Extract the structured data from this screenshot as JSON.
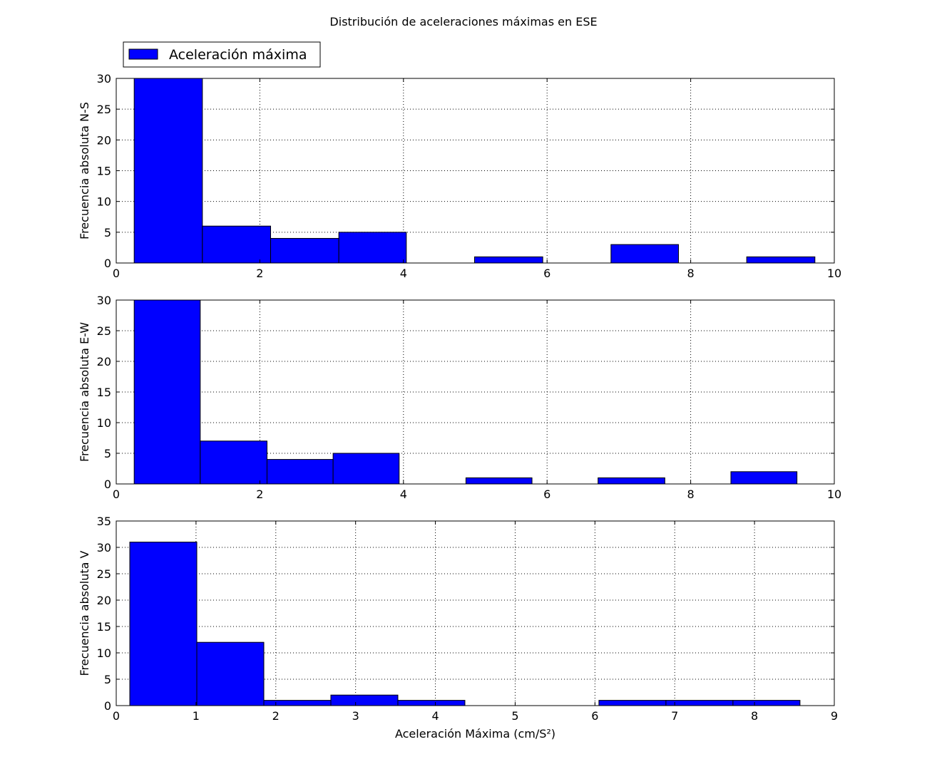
{
  "title": "Distribución de aceleraciones máximas en ESE",
  "legend": {
    "label": "Aceleración máxima",
    "color": "#0000ff",
    "placement": "top-left"
  },
  "colors": {
    "bar_fill": "#0000ff",
    "bar_edge": "#000000",
    "background": "#ffffff"
  },
  "chart_data": [
    {
      "type": "bar",
      "title": "",
      "xlabel": "",
      "ylabel": "Frecuencia absoluta N-S",
      "xlim": [
        0,
        10
      ],
      "ylim": [
        0,
        30
      ],
      "xticks": [
        0,
        2,
        4,
        6,
        8,
        10
      ],
      "yticks": [
        0,
        5,
        10,
        15,
        20,
        25,
        30
      ],
      "grid": true,
      "bins": [
        {
          "start": 0.25,
          "end": 1.2,
          "count": 30
        },
        {
          "start": 1.2,
          "end": 2.15,
          "count": 6
        },
        {
          "start": 2.15,
          "end": 3.1,
          "count": 4
        },
        {
          "start": 3.1,
          "end": 4.04,
          "count": 5
        },
        {
          "start": 4.04,
          "end": 4.99,
          "count": 0
        },
        {
          "start": 4.99,
          "end": 5.94,
          "count": 1
        },
        {
          "start": 5.94,
          "end": 6.89,
          "count": 0
        },
        {
          "start": 6.89,
          "end": 7.83,
          "count": 3
        },
        {
          "start": 7.83,
          "end": 8.78,
          "count": 0
        },
        {
          "start": 8.78,
          "end": 9.73,
          "count": 1
        }
      ]
    },
    {
      "type": "bar",
      "title": "",
      "xlabel": "",
      "ylabel": "Frecuencia absoluta E-W",
      "xlim": [
        0,
        10
      ],
      "ylim": [
        0,
        30
      ],
      "xticks": [
        0,
        2,
        4,
        6,
        8,
        10
      ],
      "yticks": [
        0,
        5,
        10,
        15,
        20,
        25,
        30
      ],
      "grid": true,
      "bins": [
        {
          "start": 0.25,
          "end": 1.17,
          "count": 30
        },
        {
          "start": 1.17,
          "end": 2.1,
          "count": 7
        },
        {
          "start": 2.1,
          "end": 3.02,
          "count": 4
        },
        {
          "start": 3.02,
          "end": 3.94,
          "count": 5
        },
        {
          "start": 3.94,
          "end": 4.87,
          "count": 0
        },
        {
          "start": 4.87,
          "end": 5.79,
          "count": 1
        },
        {
          "start": 5.79,
          "end": 6.71,
          "count": 0
        },
        {
          "start": 6.71,
          "end": 7.64,
          "count": 1
        },
        {
          "start": 7.64,
          "end": 8.56,
          "count": 0
        },
        {
          "start": 8.56,
          "end": 9.48,
          "count": 2
        }
      ]
    },
    {
      "type": "bar",
      "title": "",
      "xlabel": "Aceleración Máxima (cm/S²)",
      "ylabel": "Frecuencia absoluta V",
      "xlim": [
        0,
        9
      ],
      "ylim": [
        0,
        35
      ],
      "xticks": [
        0,
        1,
        2,
        3,
        4,
        5,
        6,
        7,
        8,
        9
      ],
      "yticks": [
        0,
        5,
        10,
        15,
        20,
        25,
        30,
        35
      ],
      "grid": true,
      "bins": [
        {
          "start": 0.17,
          "end": 1.01,
          "count": 31
        },
        {
          "start": 1.01,
          "end": 1.85,
          "count": 12
        },
        {
          "start": 1.85,
          "end": 2.69,
          "count": 1
        },
        {
          "start": 2.69,
          "end": 3.53,
          "count": 2
        },
        {
          "start": 3.53,
          "end": 4.37,
          "count": 1
        },
        {
          "start": 4.37,
          "end": 5.21,
          "count": 0
        },
        {
          "start": 5.21,
          "end": 6.05,
          "count": 0
        },
        {
          "start": 6.05,
          "end": 6.89,
          "count": 1
        },
        {
          "start": 6.89,
          "end": 7.73,
          "count": 1
        },
        {
          "start": 7.73,
          "end": 8.57,
          "count": 1
        }
      ]
    }
  ]
}
